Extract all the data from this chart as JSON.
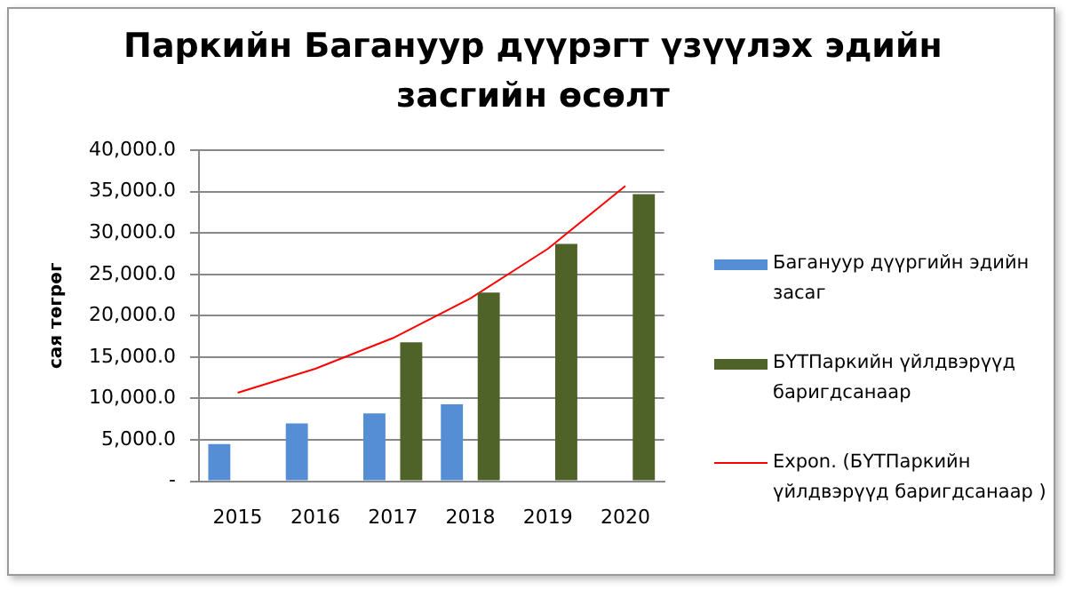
{
  "chart_data": {
    "type": "bar",
    "title": "Паркийн Багануур дүүрэгт үзүүлэх эдийн засгийн өсөлт",
    "ylabel": "сая төгрөг",
    "categories": [
      "2015",
      "2016",
      "2017",
      "2018",
      "2019",
      "2020"
    ],
    "series": [
      {
        "name": "Багануур дүүргийн эдийн засаг",
        "color": "#558ed5",
        "values": [
          4500,
          7000,
          8200,
          9300,
          null,
          null
        ]
      },
      {
        "name": "БҮТПаркийн үйлдвэрүүд баригдсанаар",
        "color": "#4f6228",
        "values": [
          null,
          null,
          16800,
          22800,
          28700,
          34700
        ]
      },
      {
        "name": "Expon. (БҮТПаркийн үйлдвэрүүд баригдсанаар )",
        "type": "line",
        "color": "#ff0000",
        "values": [
          10700,
          13600,
          17300,
          22100,
          28100,
          35700
        ]
      }
    ],
    "ylim": [
      0,
      40000
    ],
    "yticks": [
      {
        "value": 0,
        "label": "-"
      },
      {
        "value": 5000,
        "label": "5,000.0"
      },
      {
        "value": 10000,
        "label": "10,000.0"
      },
      {
        "value": 15000,
        "label": "15,000.0"
      },
      {
        "value": 20000,
        "label": "20,000.0"
      },
      {
        "value": 25000,
        "label": "25,000.0"
      },
      {
        "value": 30000,
        "label": "30,000.0"
      },
      {
        "value": 35000,
        "label": "35,000.0"
      },
      {
        "value": 40000,
        "label": "40,000.0"
      }
    ],
    "grid": "y",
    "legend": "right",
    "marker": "none"
  }
}
